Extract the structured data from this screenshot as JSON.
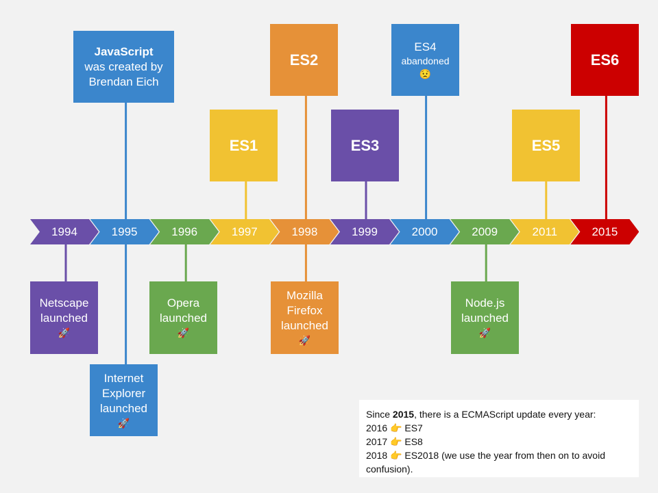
{
  "colors": {
    "purple": "#6a4fa8",
    "blue": "#3b86cc",
    "green": "#6aa84f",
    "yellow": "#f1c232",
    "orange": "#e69138",
    "red": "#cc0000"
  },
  "timeline": {
    "years": [
      {
        "label": "1994",
        "color": "purple"
      },
      {
        "label": "1995",
        "color": "blue"
      },
      {
        "label": "1996",
        "color": "green"
      },
      {
        "label": "1997",
        "color": "yellow"
      },
      {
        "label": "1998",
        "color": "orange"
      },
      {
        "label": "1999",
        "color": "purple"
      },
      {
        "label": "2000",
        "color": "blue"
      },
      {
        "label": "2009",
        "color": "green"
      },
      {
        "label": "2011",
        "color": "yellow"
      },
      {
        "label": "2015",
        "color": "red"
      }
    ]
  },
  "events_above": [
    {
      "year": "1995",
      "bold": "JavaScript",
      "lines": [
        "was created by",
        "Brendan Eich"
      ],
      "color": "blue"
    },
    {
      "year": "1997",
      "title": "ES1",
      "color": "yellow"
    },
    {
      "year": "1998",
      "title": "ES2",
      "color": "orange"
    },
    {
      "year": "1999",
      "title": "ES3",
      "color": "purple"
    },
    {
      "year": "2000",
      "lines": [
        "ES4"
      ],
      "small": "abandoned",
      "emoji": "😟",
      "color": "blue"
    },
    {
      "year": "2011",
      "title": "ES5",
      "color": "yellow"
    },
    {
      "year": "2015",
      "title": "ES6",
      "color": "red"
    }
  ],
  "events_below": [
    {
      "year": "1994",
      "lines": [
        "Netscape",
        "launched"
      ],
      "emoji": "🚀",
      "color": "purple"
    },
    {
      "year": "1995",
      "lines": [
        "Internet",
        "Explorer",
        "launched"
      ],
      "emoji": "🚀",
      "color": "blue"
    },
    {
      "year": "1996",
      "lines": [
        "Opera",
        "launched"
      ],
      "emoji": "🚀",
      "color": "green"
    },
    {
      "year": "1998",
      "lines": [
        "Mozilla",
        "Firefox",
        "launched"
      ],
      "emoji": "🚀",
      "color": "orange"
    },
    {
      "year": "2009",
      "lines": [
        "Node.js",
        "launched"
      ],
      "emoji": "🚀",
      "color": "green"
    }
  ],
  "note": {
    "intro_prefix": "Since ",
    "intro_bold": "2015",
    "intro_suffix": ", there is a ECMAScript update every year:",
    "pointer_emoji": "👉",
    "items": [
      {
        "year": "2016",
        "text": "ES7"
      },
      {
        "year": "2017",
        "text": "ES8"
      },
      {
        "year": "2018",
        "text": "ES2018 (we use the year from then on to avoid confusion)."
      }
    ]
  }
}
